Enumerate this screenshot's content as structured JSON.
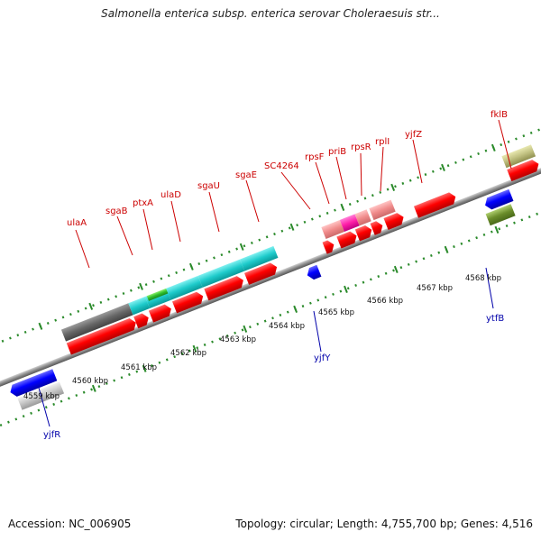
{
  "title": "Salmonella enterica subsp. enterica serovar Choleraesuis str...",
  "accession": "Accession: NC_006905",
  "topology": "Topology: circular; Length: 4,755,700 bp; Genes: 4,516",
  "colors": {
    "label_red": "#cc0000",
    "label_blue": "#0000aa",
    "tick": "#2a8a2a",
    "backbone": "#8c8c8c"
  },
  "kbp_labels": [
    "4559 kbp",
    "4560 kbp",
    "4561 kbp",
    "4562 kbp",
    "4563 kbp",
    "4564 kbp",
    "4565 kbp",
    "4566 kbp",
    "4567 kbp",
    "4568 kbp"
  ],
  "genes_top": [
    {
      "label": "ulaA",
      "color": "red"
    },
    {
      "label": "sgaB",
      "color": "red"
    },
    {
      "label": "ptxA",
      "color": "red"
    },
    {
      "label": "ulaD",
      "color": "red"
    },
    {
      "label": "sgaU",
      "color": "red"
    },
    {
      "label": "sgaE",
      "color": "red"
    },
    {
      "label": "SC4264",
      "color": "red"
    },
    {
      "label": "rpsF",
      "color": "red"
    },
    {
      "label": "priB",
      "color": "red"
    },
    {
      "label": "rpsR",
      "color": "red"
    },
    {
      "label": "rplI",
      "color": "red"
    },
    {
      "label": "yjfZ",
      "color": "red"
    },
    {
      "label": "fklB",
      "color": "red"
    }
  ],
  "genes_bottom": [
    {
      "label": "yjfR",
      "color": "blue"
    },
    {
      "label": "yjfY",
      "color": "blue"
    },
    {
      "label": "ytfB",
      "color": "blue"
    }
  ]
}
